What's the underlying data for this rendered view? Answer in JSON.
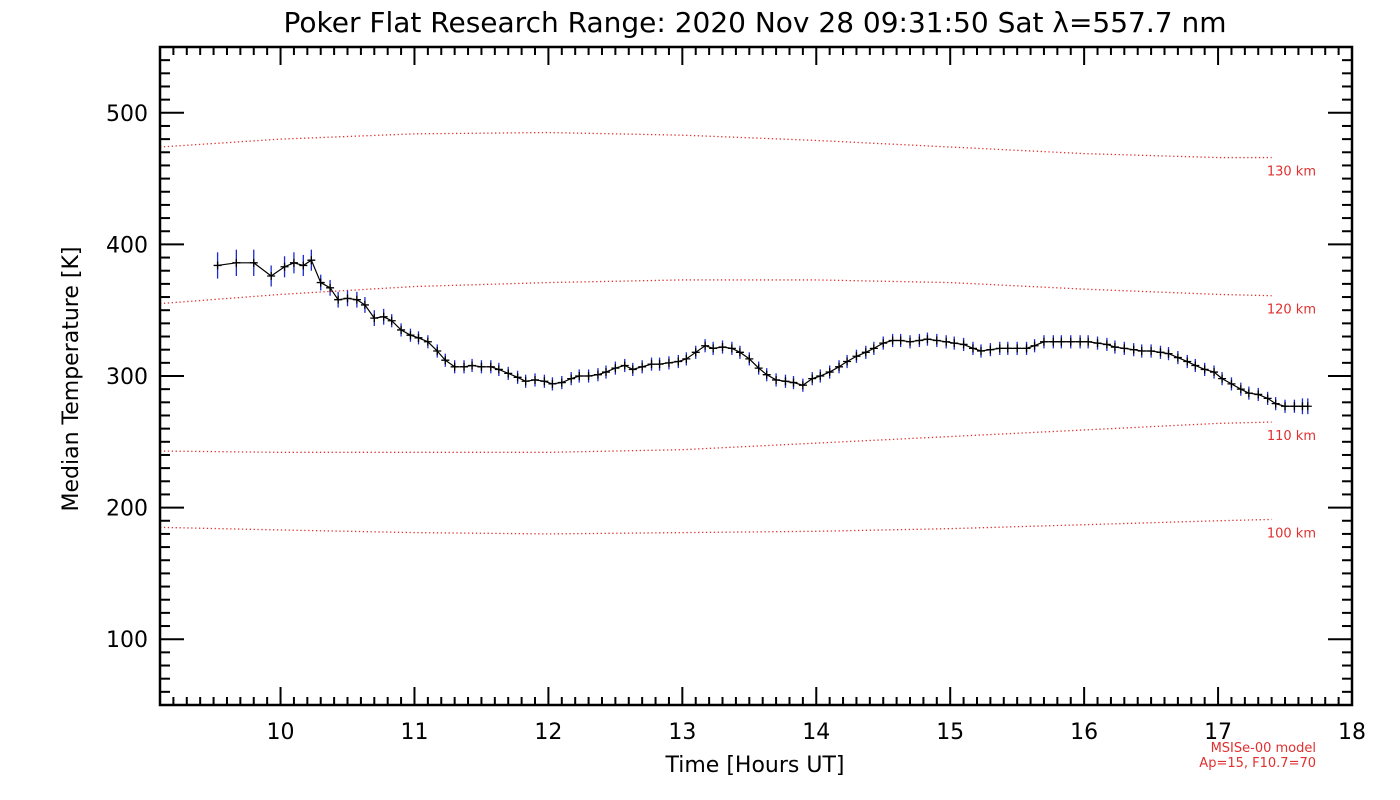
{
  "chart_data": {
    "type": "line",
    "title": "Poker Flat Research Range: 2020 Nov 28 09:31:50 Sat λ=557.7 nm",
    "xlabel": "Time [Hours UT]",
    "ylabel": "Median Temperature [K]",
    "xlim": [
      9.1,
      18.0
    ],
    "ylim": [
      50,
      550
    ],
    "x_ticks": [
      10,
      11,
      12,
      13,
      14,
      15,
      16,
      17,
      18
    ],
    "y_ticks": [
      100,
      200,
      300,
      400,
      500
    ],
    "grid": false,
    "colors": {
      "data_line": "#000000",
      "error_bar": "#1a2bd0",
      "model": "#e03030",
      "axis": "#000000"
    },
    "series": [
      {
        "kind": "measured",
        "x": [
          9.53,
          9.67,
          9.8,
          9.93,
          10.03,
          10.1,
          10.17,
          10.23,
          10.3,
          10.37,
          10.43,
          10.5,
          10.57,
          10.63,
          10.7,
          10.77,
          10.83,
          10.9,
          10.97,
          11.03,
          11.1,
          11.17,
          11.23,
          11.3,
          11.37,
          11.43,
          11.5,
          11.57,
          11.63,
          11.7,
          11.77,
          11.83,
          11.9,
          11.97,
          12.03,
          12.1,
          12.17,
          12.23,
          12.3,
          12.37,
          12.43,
          12.5,
          12.57,
          12.63,
          12.7,
          12.77,
          12.83,
          12.9,
          12.97,
          13.03,
          13.1,
          13.17,
          13.23,
          13.3,
          13.37,
          13.43,
          13.5,
          13.57,
          13.63,
          13.7,
          13.77,
          13.83,
          13.9,
          13.97,
          14.03,
          14.1,
          14.17,
          14.23,
          14.3,
          14.37,
          14.43,
          14.5,
          14.57,
          14.63,
          14.7,
          14.77,
          14.83,
          14.9,
          14.97,
          15.03,
          15.1,
          15.17,
          15.23,
          15.3,
          15.37,
          15.43,
          15.5,
          15.57,
          15.63,
          15.7,
          15.77,
          15.83,
          15.9,
          15.97,
          16.03,
          16.1,
          16.17,
          16.23,
          16.3,
          16.37,
          16.43,
          16.5,
          16.57,
          16.63,
          16.7,
          16.77,
          16.83,
          16.9,
          16.97,
          17.03,
          17.1,
          17.17,
          17.23,
          17.3,
          17.37,
          17.43,
          17.5,
          17.57,
          17.63,
          17.67
        ],
        "y": [
          384,
          386,
          386,
          376,
          383,
          386,
          384,
          388,
          371,
          367,
          358,
          359,
          358,
          354,
          344,
          345,
          342,
          335,
          331,
          329,
          326,
          319,
          312,
          307,
          307,
          308,
          307,
          307,
          305,
          302,
          299,
          296,
          297,
          296,
          294,
          295,
          298,
          300,
          300,
          301,
          303,
          306,
          308,
          305,
          307,
          309,
          309,
          310,
          311,
          313,
          318,
          323,
          321,
          322,
          321,
          318,
          313,
          306,
          301,
          297,
          296,
          295,
          293,
          298,
          300,
          303,
          307,
          311,
          315,
          318,
          321,
          325,
          327,
          327,
          326,
          327,
          328,
          327,
          326,
          325,
          324,
          321,
          319,
          320,
          321,
          321,
          321,
          321,
          323,
          326,
          326,
          326,
          326,
          326,
          326,
          325,
          324,
          322,
          321,
          320,
          319,
          319,
          318,
          317,
          314,
          311,
          308,
          305,
          303,
          298,
          294,
          290,
          287,
          286,
          283,
          279,
          277,
          277,
          277,
          277
        ],
        "err": [
          10,
          10,
          10,
          8,
          8,
          8,
          8,
          8,
          6,
          6,
          6,
          6,
          6,
          6,
          6,
          6,
          5,
          5,
          5,
          5,
          5,
          5,
          5,
          5,
          5,
          5,
          5,
          5,
          5,
          5,
          5,
          5,
          5,
          5,
          5,
          5,
          5,
          5,
          5,
          5,
          5,
          5,
          5,
          5,
          5,
          5,
          5,
          5,
          5,
          5,
          5,
          5,
          5,
          5,
          5,
          5,
          5,
          5,
          5,
          5,
          5,
          5,
          5,
          5,
          5,
          5,
          5,
          5,
          5,
          5,
          5,
          5,
          5,
          5,
          5,
          5,
          5,
          5,
          5,
          5,
          5,
          5,
          5,
          5,
          5,
          5,
          5,
          5,
          5,
          5,
          5,
          5,
          5,
          5,
          5,
          5,
          5,
          5,
          5,
          5,
          5,
          5,
          5,
          5,
          5,
          5,
          5,
          5,
          5,
          5,
          5,
          5,
          5,
          5,
          5,
          5,
          5,
          5,
          6,
          6
        ]
      },
      {
        "kind": "model",
        "name": "130 km",
        "x": [
          9.1,
          10.0,
          11.0,
          12.0,
          13.0,
          14.0,
          15.0,
          16.0,
          17.0,
          17.4
        ],
        "y": [
          474,
          480,
          484,
          485,
          483,
          479,
          474,
          469,
          466,
          466
        ]
      },
      {
        "kind": "model",
        "name": "120 km",
        "x": [
          9.1,
          10.0,
          11.0,
          12.0,
          13.0,
          14.0,
          15.0,
          16.0,
          17.0,
          17.4
        ],
        "y": [
          355,
          362,
          368,
          371,
          373,
          373,
          371,
          366,
          362,
          361
        ]
      },
      {
        "kind": "model",
        "name": "110 km",
        "x": [
          9.1,
          10.0,
          11.0,
          12.0,
          13.0,
          14.0,
          15.0,
          16.0,
          17.0,
          17.4
        ],
        "y": [
          243,
          242,
          242,
          242,
          244,
          249,
          254,
          259,
          264,
          265
        ]
      },
      {
        "kind": "model",
        "name": "100 km",
        "x": [
          9.1,
          10.0,
          11.0,
          12.0,
          13.0,
          14.0,
          15.0,
          16.0,
          17.0,
          17.4
        ],
        "y": [
          185,
          183,
          181,
          180,
          181,
          182,
          184,
          187,
          190,
          191
        ]
      }
    ],
    "annotations": [
      "MSISe-00 model",
      "Ap=15, F10.7=70"
    ]
  }
}
